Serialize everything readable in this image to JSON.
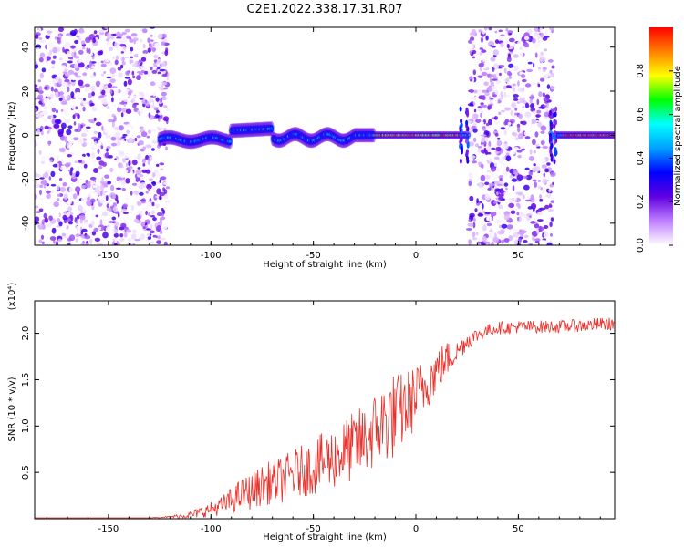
{
  "title": "C2E1.2022.338.17.31.R07",
  "chart_data": [
    {
      "type": "heatmap",
      "title": "",
      "xlabel": "Height of straight line (km)",
      "ylabel": "Frequency (Hz)",
      "xlim": [
        -186,
        97
      ],
      "ylim": [
        -50,
        49
      ],
      "x_ticks": [
        "-150",
        "-100",
        "-50",
        "0",
        "50"
      ],
      "y_ticks": [
        "40",
        "20",
        "0",
        "-20",
        "-40"
      ],
      "colorbar": {
        "label": "Normalized spectral amplitude",
        "range": [
          0.0,
          1.0
        ],
        "ticks": [
          "0.0",
          "0.2",
          "0.4",
          "0.6",
          "0.8"
        ],
        "stops": [
          "#ffffff",
          "#c080ff",
          "#6000e0",
          "#0000ff",
          "#00a0ff",
          "#00ffff",
          "#00ff00",
          "#ffff00",
          "#ff8000",
          "#ff0000"
        ]
      },
      "features": {
        "noise_regions_km": [
          [
            -186,
            -121
          ],
          [
            26,
            67
          ]
        ],
        "signal_track": "frequency near 0 Hz from about -125 km to 97 km; strongest amplitude from about -20 km to 20 km and from 70 km to 97 km"
      }
    },
    {
      "type": "line",
      "title": "",
      "xlabel": "Height of straight line (km)",
      "ylabel": "SNR (10 * v/v)",
      "y_multiplier": "(x10⁴)",
      "xlim": [
        -186,
        97
      ],
      "ylim": [
        0,
        2.35
      ],
      "x_ticks": [
        "-150",
        "-100",
        "-50",
        "0",
        "50"
      ],
      "y_ticks": [
        "0.5",
        "1.0",
        "1.5",
        "2.0"
      ],
      "series_color": "#e8302a",
      "series": [
        {
          "x": [
            -186,
            -170,
            -150,
            -130,
            -120,
            -110,
            -105,
            -100,
            -95,
            -90,
            -85,
            -80,
            -75,
            -70,
            -65,
            -60,
            -55,
            -50,
            -45,
            -40,
            -35,
            -30,
            -25,
            -20,
            -15,
            -12,
            -10,
            -5,
            0,
            5,
            10,
            15,
            20,
            25,
            30,
            35,
            40,
            45,
            50,
            55,
            60,
            65,
            70,
            75,
            80,
            85,
            90,
            97
          ],
          "y": [
            0.01,
            0.01,
            0.01,
            0.01,
            0.02,
            0.04,
            0.07,
            0.1,
            0.14,
            0.2,
            0.26,
            0.3,
            0.36,
            0.4,
            0.42,
            0.48,
            0.52,
            0.55,
            0.62,
            0.66,
            0.72,
            0.78,
            0.85,
            0.95,
            1.05,
            1.1,
            1.12,
            1.2,
            1.32,
            1.45,
            1.6,
            1.72,
            1.8,
            1.92,
            1.98,
            2.03,
            2.06,
            2.06,
            2.07,
            2.07,
            2.07,
            2.07,
            2.07,
            2.08,
            2.08,
            2.09,
            2.1,
            2.1
          ],
          "spread": [
            0.0,
            0.0,
            0.0,
            0.0,
            0.01,
            0.04,
            0.06,
            0.08,
            0.1,
            0.14,
            0.18,
            0.2,
            0.22,
            0.24,
            0.25,
            0.27,
            0.28,
            0.3,
            0.32,
            0.34,
            0.36,
            0.38,
            0.4,
            0.42,
            0.45,
            0.5,
            0.45,
            0.4,
            0.35,
            0.3,
            0.25,
            0.2,
            0.12,
            0.1,
            0.08,
            0.07,
            0.07,
            0.07,
            0.07,
            0.07,
            0.07,
            0.07,
            0.07,
            0.07,
            0.07,
            0.07,
            0.07,
            0.07
          ]
        }
      ]
    }
  ]
}
